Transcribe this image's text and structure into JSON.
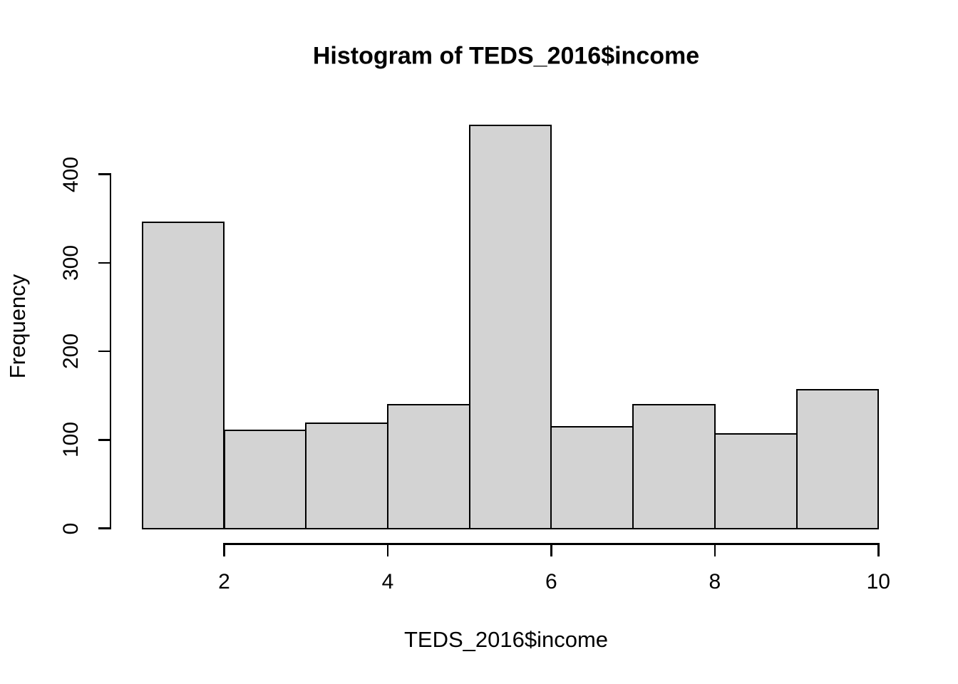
{
  "chart_data": {
    "type": "bar",
    "subtype": "histogram",
    "title": "Histogram of TEDS_2016$income",
    "xlabel": "TEDS_2016$income",
    "ylabel": "Frequency",
    "bin_edges": [
      1,
      2,
      3,
      4,
      5,
      6,
      7,
      8,
      9,
      10
    ],
    "frequencies": [
      346,
      111,
      119,
      140,
      455,
      115,
      140,
      107,
      157
    ],
    "x_ticks": [
      2,
      4,
      6,
      8,
      10
    ],
    "y_ticks": [
      0,
      100,
      200,
      300,
      400
    ],
    "xlim": [
      1,
      10
    ],
    "ylim": [
      0,
      460
    ],
    "grid": false,
    "legend": false,
    "bar_fill": "#d3d3d3",
    "bar_border": "#000000",
    "background": "#ffffff",
    "text_color": "#000000"
  }
}
